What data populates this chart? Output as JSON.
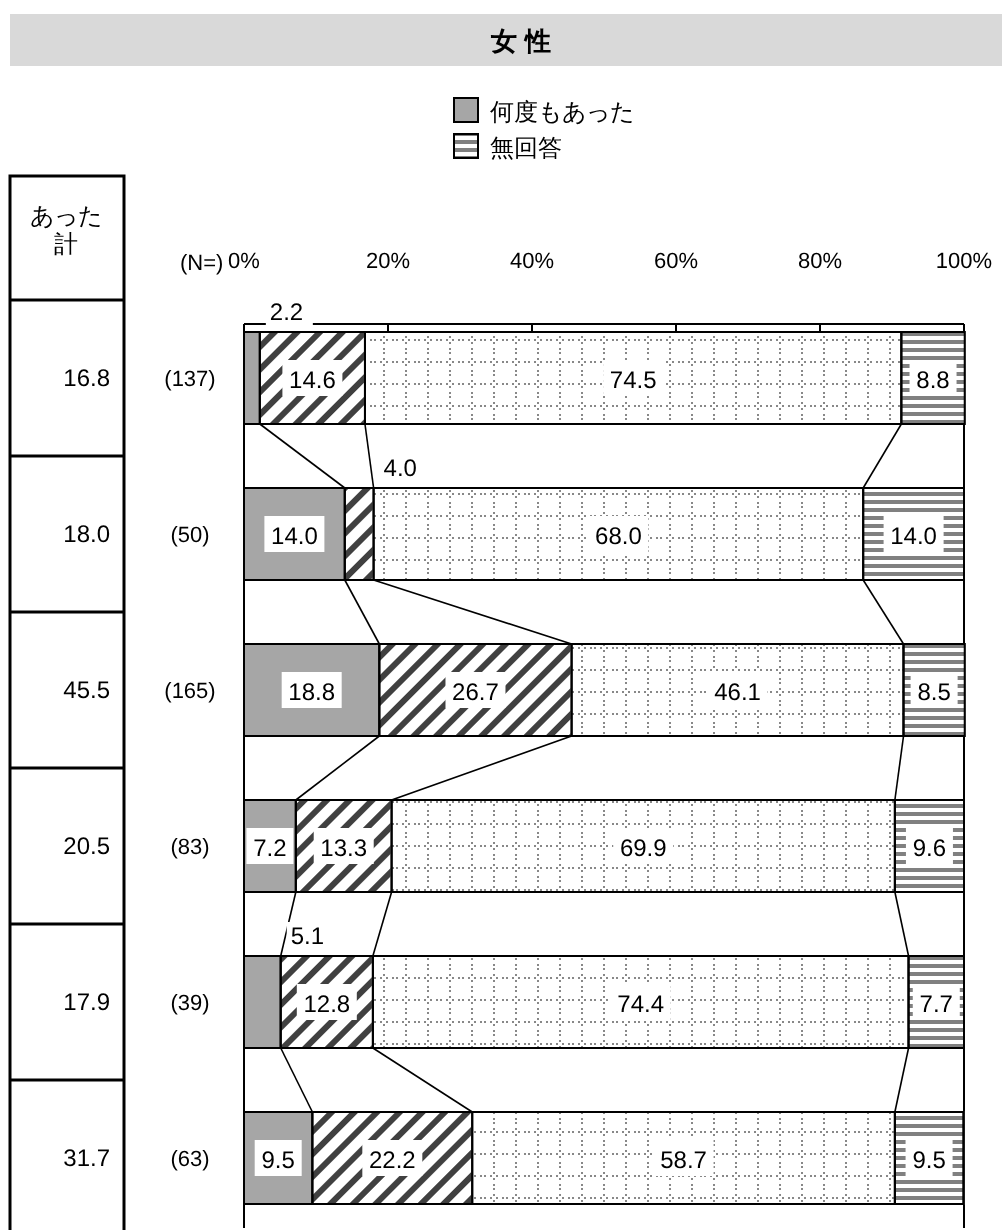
{
  "chart_data": {
    "type": "bar",
    "orientation": "horizontal",
    "stacked": true,
    "title": "女 性",
    "categories": [
      "(137)",
      "(50)",
      "(165)",
      "(83)",
      "(39)",
      "(63)"
    ],
    "series": [
      {
        "name": "何度もあった",
        "color": "#a6a6a6",
        "values": [
          2.2,
          14.0,
          18.8,
          7.2,
          5.1,
          9.5
        ],
        "value_labels": [
          "2.2",
          "14.0",
          "18.8",
          "7.2",
          "5.1",
          "9.5"
        ]
      },
      {
        "color": "#404040",
        "values": [
          14.6,
          4.0,
          26.7,
          13.3,
          12.8,
          22.2
        ],
        "value_labels": [
          "14.6",
          "4.0",
          "26.7",
          "13.3",
          "12.8",
          "22.2"
        ]
      },
      {
        "color": "#ffffff",
        "values": [
          74.5,
          68.0,
          46.1,
          69.9,
          74.4,
          58.7
        ],
        "value_labels": [
          "74.5",
          "68.0",
          "46.1",
          "69.9",
          "74.4",
          "58.7"
        ]
      },
      {
        "name": "無回答",
        "color": "#808080",
        "values": [
          8.8,
          14.0,
          8.5,
          9.6,
          7.7,
          9.5
        ],
        "value_labels": [
          "8.8",
          "14.0",
          "8.5",
          "9.6",
          "7.7",
          "9.5"
        ]
      }
    ],
    "xlim": [
      0,
      100
    ],
    "xticks": [
      {
        "value": 0,
        "label": "0%"
      },
      {
        "value": 20,
        "label": "20%"
      },
      {
        "value": 40,
        "label": "40%"
      },
      {
        "value": 60,
        "label": "60%"
      },
      {
        "value": 80,
        "label": "80%"
      },
      {
        "value": 100,
        "label": "100%"
      }
    ],
    "legend": "top",
    "grid": false,
    "annotations": [
      "(N=)",
      "あった計",
      "16.8",
      "18.0",
      "45.5",
      "20.5",
      "17.9",
      "31.7"
    ]
  }
}
